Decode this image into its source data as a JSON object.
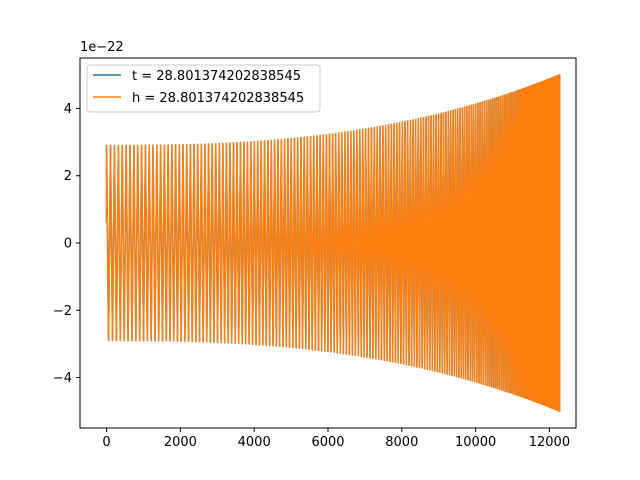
{
  "chart_data": {
    "type": "line",
    "title": "",
    "xlabel": "",
    "ylabel": "",
    "y_offset_label": "1e−22",
    "xlim": [
      -720,
      12720
    ],
    "ylim": [
      -5.5,
      5.5
    ],
    "x_ticks": [
      0,
      2000,
      4000,
      6000,
      8000,
      10000,
      12000
    ],
    "x_tick_labels": [
      "0",
      "2000",
      "4000",
      "6000",
      "8000",
      "10000",
      "12000"
    ],
    "y_ticks": [
      -4,
      -2,
      0,
      2,
      4
    ],
    "y_tick_labels": [
      "−4",
      "−2",
      "0",
      "2",
      "4"
    ],
    "grid": false,
    "legend_position": "top-left",
    "signal": {
      "x_start": 0,
      "x_end": 12280,
      "start_value": 0.6,
      "amplitude_start": 2.9,
      "amplitude_end": 5.0,
      "cycles": 178,
      "description": "oscillating waveform with slowly growing amplitude and frequency"
    },
    "series": [
      {
        "name": "t = 28.801374202838545",
        "color": "#1f77b4"
      },
      {
        "name": "h = 28.801374202838545",
        "color": "#ff7f0e"
      }
    ]
  }
}
